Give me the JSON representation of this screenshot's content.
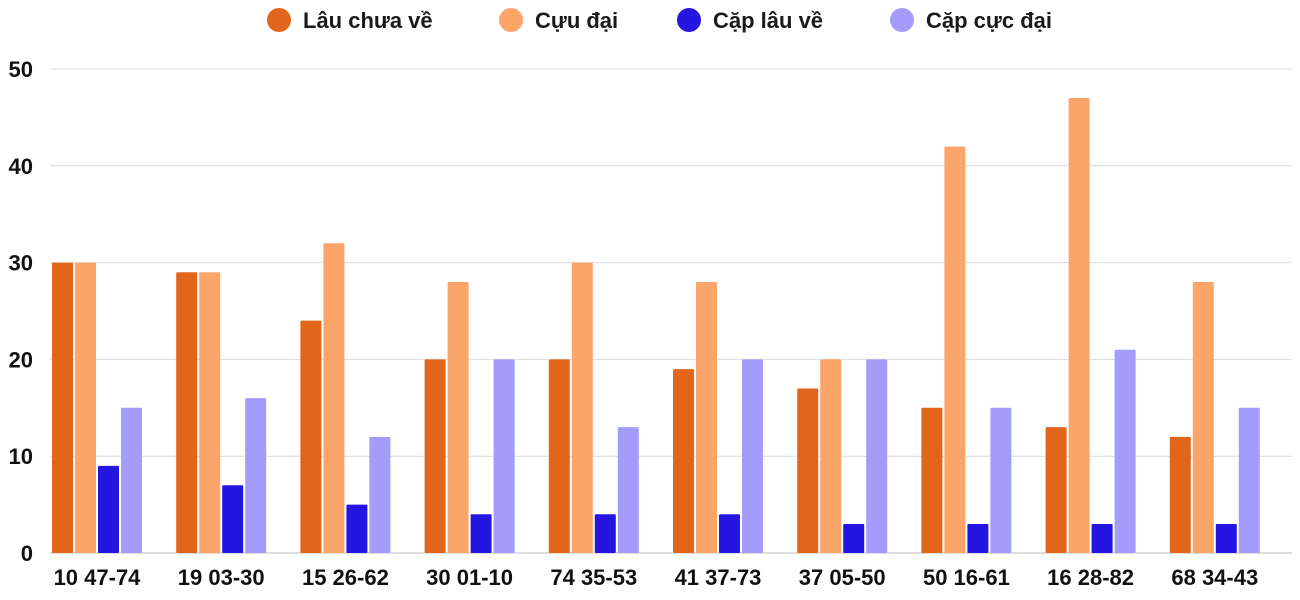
{
  "chart_data": {
    "type": "bar",
    "title": "",
    "xlabel": "",
    "ylabel": "",
    "ylim": [
      0,
      50
    ],
    "yticks": [
      0,
      10,
      20,
      30,
      40,
      50
    ],
    "grid": true,
    "legend_position": "top-center",
    "categories": [
      "10 47-74",
      "19 03-30",
      "15 26-62",
      "30 01-10",
      "74 35-53",
      "41 37-73",
      "37 05-50",
      "50 16-61",
      "16 28-82",
      "68 34-43"
    ],
    "series": [
      {
        "name": "Lâu chưa về",
        "color": "#e1651b",
        "values": [
          30,
          29,
          24,
          20,
          20,
          19,
          17,
          15,
          13,
          12
        ]
      },
      {
        "name": "Cựu đại",
        "color": "#fca56a",
        "values": [
          30,
          29,
          32,
          28,
          30,
          28,
          20,
          42,
          47,
          28
        ]
      },
      {
        "name": "Cặp lâu về",
        "color": "#2416e0",
        "values": [
          9,
          7,
          5,
          4,
          4,
          4,
          3,
          3,
          3,
          3
        ]
      },
      {
        "name": "Cặp cực đại",
        "color": "#a39cfb",
        "values": [
          15,
          16,
          12,
          20,
          13,
          20,
          20,
          15,
          21,
          15
        ]
      }
    ]
  }
}
